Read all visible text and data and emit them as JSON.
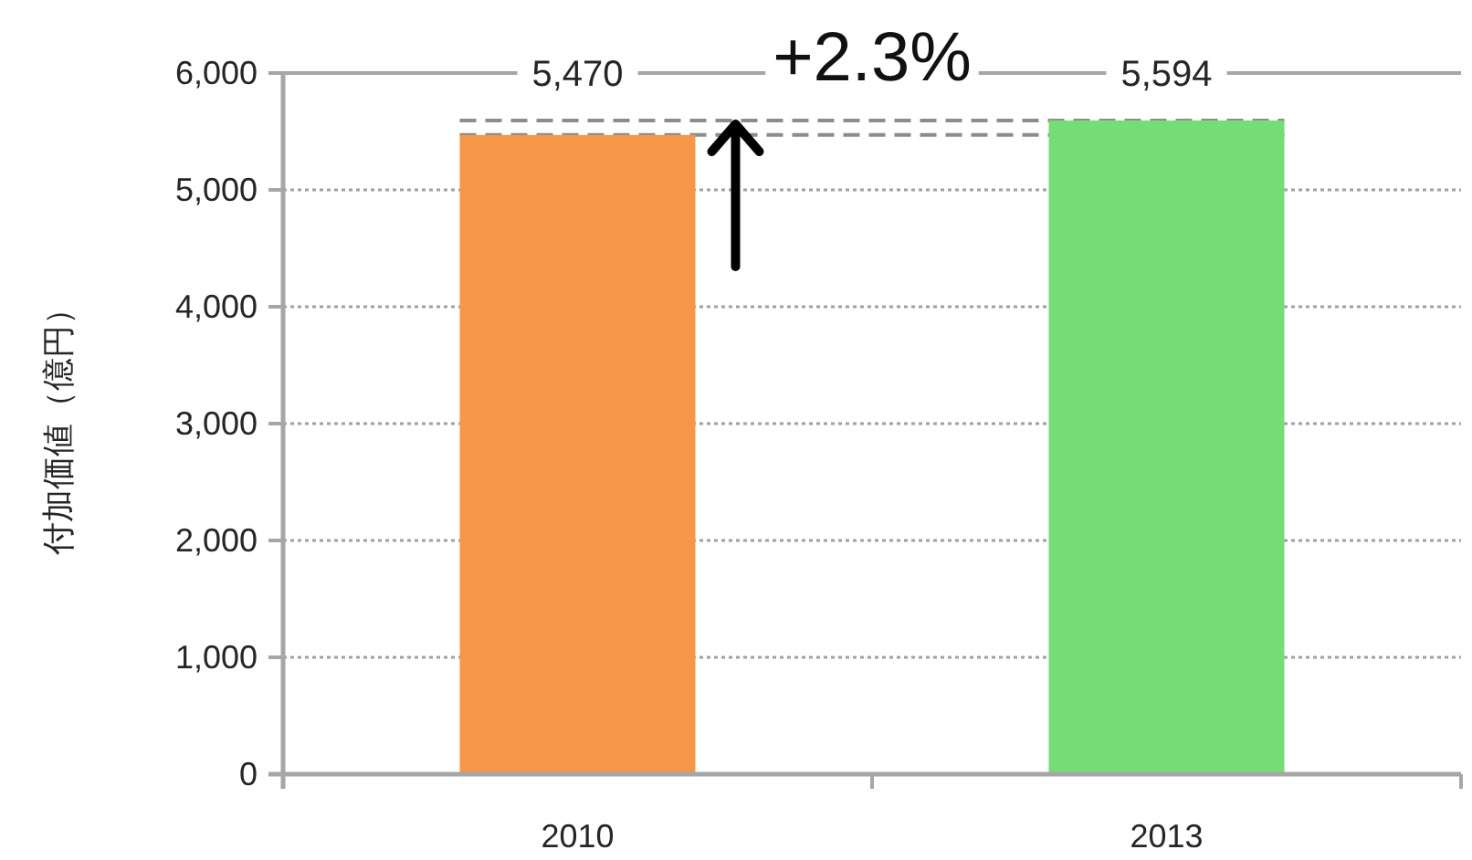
{
  "chart_data": {
    "type": "bar",
    "ylabel": "付加価値（億円）",
    "categories": [
      "2010",
      "2013"
    ],
    "values": [
      5470,
      5594
    ],
    "colors": [
      "#f59648",
      "#75dd75"
    ],
    "value_labels": [
      "5,470",
      "5,594"
    ],
    "ylim": [
      0,
      6000
    ],
    "yticks": [
      0,
      {
        "value": 1000,
        "label": "1,000"
      },
      {
        "value": 2000,
        "label": "2,000"
      },
      {
        "value": 3000,
        "label": "3,000"
      },
      {
        "value": 4000,
        "label": "4,000"
      },
      {
        "value": 5000,
        "label": "5,000"
      },
      {
        "value": 6000,
        "label": "6,000"
      }
    ],
    "grid": "y",
    "ref_lines": [
      {
        "axis": "y",
        "value": 5470,
        "color": "#8c8c8c",
        "line_style": "dashed"
      },
      {
        "axis": "y",
        "value": 5594,
        "color": "#8c8c8c",
        "line_style": "dashed"
      }
    ],
    "annotations": [
      "+2.3%"
    ]
  }
}
